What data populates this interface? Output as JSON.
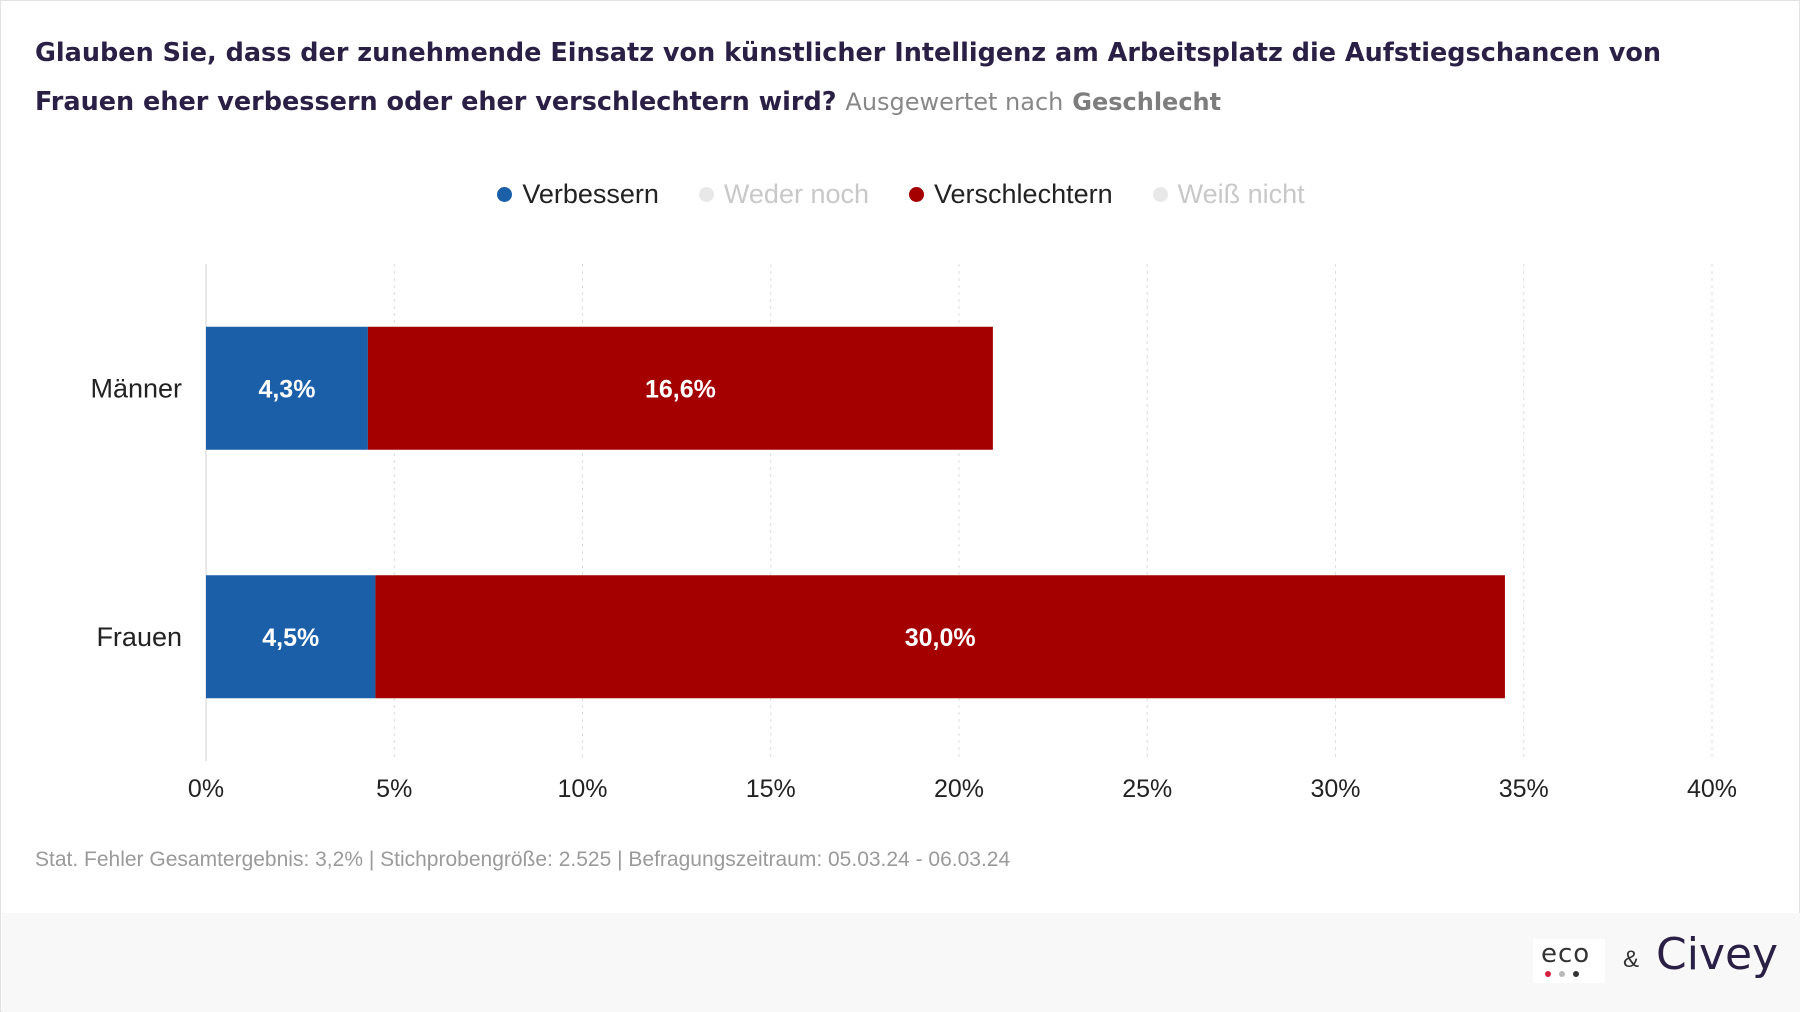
{
  "title": {
    "question": "Glauben Sie, dass der zunehmende Einsatz von künstlicher Intelligenz am Arbeitsplatz die Aufstiegschancen von Frauen eher verbessern oder eher verschlechtern wird?",
    "subtitle_prefix": "Ausgewertet nach",
    "subtitle_group": "Geschlecht"
  },
  "legend": [
    {
      "label": "Verbessern",
      "color": "#1a5fa8",
      "active": true
    },
    {
      "label": "Weder noch",
      "color": "#e8e8e8",
      "active": false
    },
    {
      "label": "Verschlechtern",
      "color": "#a40000",
      "active": true
    },
    {
      "label": "Weiß nicht",
      "color": "#e8e8e8",
      "active": false
    }
  ],
  "inactive_text_color": "#c8c8c8",
  "chart_data": {
    "type": "bar",
    "orientation": "horizontal",
    "stacked": true,
    "categories": [
      "Männer",
      "Frauen"
    ],
    "series": [
      {
        "name": "Verbessern",
        "color": "#1a5fa8",
        "values": [
          4.3,
          4.5
        ],
        "labels": [
          "4,3%",
          "4,5%"
        ]
      },
      {
        "name": "Verschlechtern",
        "color": "#a40000",
        "values": [
          16.6,
          30.0
        ],
        "labels": [
          "16,6%",
          "30,0%"
        ]
      }
    ],
    "xlim": [
      0,
      40
    ],
    "xticks": [
      {
        "value": 0,
        "label": "0%"
      },
      {
        "value": 5,
        "label": "5%"
      },
      {
        "value": 10,
        "label": "10%"
      },
      {
        "value": 15,
        "label": "15%"
      },
      {
        "value": 20,
        "label": "20%"
      },
      {
        "value": 25,
        "label": "25%"
      },
      {
        "value": 30,
        "label": "30%"
      },
      {
        "value": 35,
        "label": "35%"
      },
      {
        "value": 40,
        "label": "40%"
      }
    ],
    "grid": true
  },
  "footnote": "Stat. Fehler Gesamtergebnis: 3,2% | Stichprobengröße: 2.525 | Befragungszeitraum: 05.03.24 - 06.03.24",
  "branding": {
    "eco": "eco",
    "ampersand": "&",
    "civey": "Civey",
    "eco_dot_colors": [
      "#d4213d",
      "#b8b8b8",
      "#333333"
    ]
  }
}
